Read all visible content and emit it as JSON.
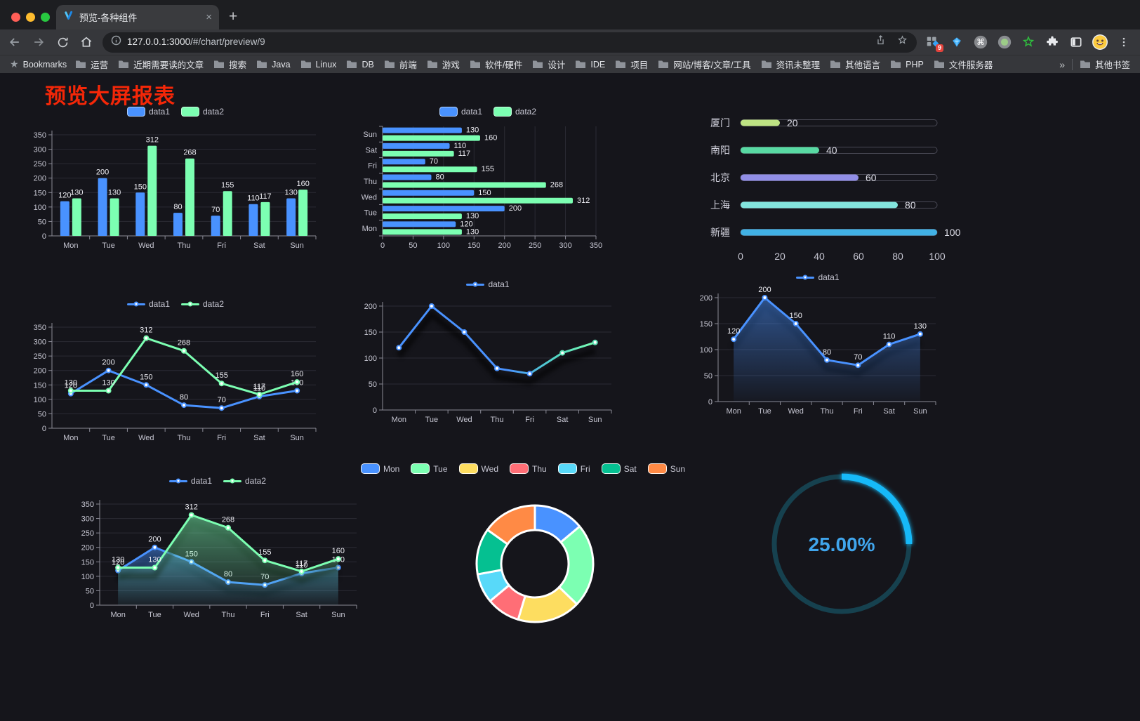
{
  "browser": {
    "tab_title": "预览-各种组件",
    "tab_close": "×",
    "new_tab": "+",
    "url_host": "127.0.0.1:3000",
    "url_path": "/#/chart/preview/9",
    "extension_badge": "9",
    "bookmarks_bar_label": "Bookmarks",
    "bookmarks": [
      "运营",
      "近期需要读的文章",
      "搜索",
      "Java",
      "Linux",
      "DB",
      "前端",
      "游戏",
      "软件/硬件",
      "设计",
      "IDE",
      "项目",
      "网站/博客/文章/工具",
      "资讯未整理",
      "其他语言",
      "PHP",
      "文件服务器"
    ],
    "bookmarks_overflow": "»",
    "other_bookmarks": "其他书签"
  },
  "page": {
    "title": "预览大屏报表"
  },
  "chart_data": [
    {
      "id": "bar-vertical",
      "type": "bar",
      "categories": [
        "Mon",
        "Tue",
        "Wed",
        "Thu",
        "Fri",
        "Sat",
        "Sun"
      ],
      "series": [
        {
          "name": "data1",
          "color": "#4992ff",
          "values": [
            120,
            200,
            150,
            80,
            70,
            110,
            130
          ]
        },
        {
          "name": "data2",
          "color": "#7cffb2",
          "values": [
            130,
            130,
            312,
            268,
            155,
            117,
            160
          ]
        }
      ],
      "ylim": [
        0,
        350
      ],
      "yticks": [
        0,
        50,
        100,
        150,
        200,
        250,
        300,
        350
      ],
      "legend_position": "top",
      "grid": true,
      "value_labels": true
    },
    {
      "id": "bar-horizontal",
      "type": "bar-horizontal",
      "categories_top_to_bottom": [
        "Sun",
        "Sat",
        "Fri",
        "Thu",
        "Wed",
        "Tue",
        "Mon"
      ],
      "series": [
        {
          "name": "data1",
          "color": "#4992ff",
          "values_top_to_bottom": [
            130,
            110,
            70,
            80,
            150,
            200,
            120
          ]
        },
        {
          "name": "data2",
          "color": "#7cffb2",
          "values_top_to_bottom": [
            160,
            117,
            155,
            268,
            312,
            130,
            130
          ]
        }
      ],
      "xlim": [
        0,
        350
      ],
      "xticks": [
        0,
        50,
        100,
        150,
        200,
        250,
        300,
        350
      ],
      "legend_position": "top",
      "value_labels": true
    },
    {
      "id": "progress-bars",
      "type": "bar-progress",
      "rows": [
        {
          "label": "厦门",
          "value": 20,
          "color": "#bee383"
        },
        {
          "label": "南阳",
          "value": 40,
          "color": "#58d9a3"
        },
        {
          "label": "北京",
          "value": 60,
          "color": "#918ee6"
        },
        {
          "label": "上海",
          "value": 80,
          "color": "#83e5de"
        },
        {
          "label": "新疆",
          "value": 100,
          "color": "#41b1e5"
        }
      ],
      "xlim": [
        0,
        100
      ],
      "xticks": [
        0,
        20,
        40,
        60,
        80,
        100
      ]
    },
    {
      "id": "line-dual",
      "type": "line",
      "categories": [
        "Mon",
        "Tue",
        "Wed",
        "Thu",
        "Fri",
        "Sat",
        "Sun"
      ],
      "series": [
        {
          "name": "data1",
          "color": "#4992ff",
          "values": [
            120,
            200,
            150,
            80,
            70,
            110,
            130
          ]
        },
        {
          "name": "data2",
          "color": "#7cffb2",
          "values": [
            130,
            130,
            312,
            268,
            155,
            117,
            160
          ]
        }
      ],
      "ylim": [
        0,
        350
      ],
      "yticks": [
        0,
        50,
        100,
        150,
        200,
        250,
        300,
        350
      ],
      "value_labels": true
    },
    {
      "id": "line-gradient",
      "type": "line",
      "categories": [
        "Mon",
        "Tue",
        "Wed",
        "Thu",
        "Fri",
        "Sat",
        "Sun"
      ],
      "series": [
        {
          "name": "data1",
          "color": "#4992ff",
          "gradient_to": "#7cffb2",
          "values": [
            120,
            200,
            150,
            80,
            70,
            110,
            130
          ]
        }
      ],
      "ylim": [
        0,
        200
      ],
      "yticks": [
        0,
        50,
        100,
        150,
        200
      ],
      "value_labels": false,
      "shadow": true
    },
    {
      "id": "area-single",
      "type": "area",
      "categories": [
        "Mon",
        "Tue",
        "Wed",
        "Thu",
        "Fri",
        "Sat",
        "Sun"
      ],
      "series": [
        {
          "name": "data1",
          "color": "#4992ff",
          "area": true,
          "values": [
            120,
            200,
            150,
            80,
            70,
            110,
            130
          ]
        }
      ],
      "ylim": [
        0,
        200
      ],
      "yticks": [
        0,
        50,
        100,
        150,
        200
      ],
      "value_labels": true,
      "shadow": true
    },
    {
      "id": "area-dual",
      "type": "area",
      "categories": [
        "Mon",
        "Tue",
        "Wed",
        "Thu",
        "Fri",
        "Sat",
        "Sun"
      ],
      "series": [
        {
          "name": "data1",
          "color": "#4992ff",
          "area": true,
          "values": [
            120,
            200,
            150,
            80,
            70,
            110,
            130
          ]
        },
        {
          "name": "data2",
          "color": "#7cffb2",
          "area": true,
          "values": [
            130,
            130,
            312,
            268,
            155,
            117,
            160
          ]
        }
      ],
      "ylim": [
        0,
        350
      ],
      "yticks": [
        0,
        50,
        100,
        150,
        200,
        250,
        300,
        350
      ],
      "value_labels": true,
      "shadow": true
    },
    {
      "id": "pie-donut",
      "type": "pie",
      "items": [
        {
          "name": "Mon",
          "value": 120,
          "color": "#4992ff"
        },
        {
          "name": "Tue",
          "value": 200,
          "color": "#7cffb2"
        },
        {
          "name": "Wed",
          "value": 150,
          "color": "#fddd60"
        },
        {
          "name": "Thu",
          "value": 80,
          "color": "#ff6e76"
        },
        {
          "name": "Fri",
          "value": 70,
          "color": "#58d9f9"
        },
        {
          "name": "Sat",
          "value": 110,
          "color": "#05c091"
        },
        {
          "name": "Sun",
          "value": 130,
          "color": "#ff8a45"
        }
      ],
      "border_color": "#ffffff",
      "legend_position": "top"
    },
    {
      "id": "ring-progress",
      "type": "gauge",
      "value_text": "25.00%",
      "percent": 25,
      "color": "#18B9F8",
      "track_color": "#16414F",
      "text_color": "#40A5EC"
    }
  ]
}
